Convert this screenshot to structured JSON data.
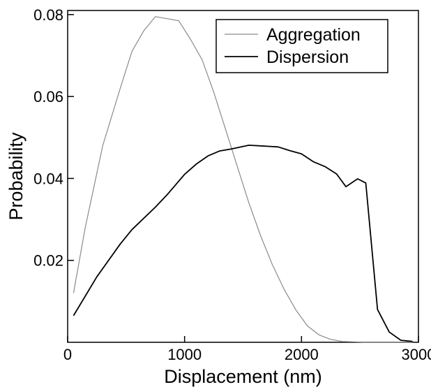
{
  "chart_data": {
    "type": "line",
    "title": "",
    "xlabel": "Displacement (nm)",
    "ylabel": "Probability",
    "xlim": [
      0,
      3000
    ],
    "ylim": [
      0,
      0.081
    ],
    "xticks": [
      0,
      1000,
      2000,
      3000
    ],
    "xtick_labels": [
      "0",
      "1000",
      "2000",
      "3000"
    ],
    "yticks": [
      0.02,
      0.04,
      0.06,
      0.08
    ],
    "ytick_labels": [
      "0.02",
      "0.04",
      "0.06",
      "0.08"
    ],
    "grid": false,
    "legend_position": "top-right",
    "series": [
      {
        "name": "Aggregation",
        "color": "#8a8a8a",
        "x": [
          50,
          150,
          300,
          450,
          550,
          650,
          750,
          850,
          950,
          1050,
          1150,
          1250,
          1350,
          1450,
          1550,
          1650,
          1750,
          1850,
          1950,
          2050,
          2150,
          2250,
          2350,
          2450,
          2550,
          2650,
          2750,
          2850,
          2950
        ],
        "y": [
          0.012,
          0.028,
          0.048,
          0.062,
          0.071,
          0.076,
          0.0795,
          0.079,
          0.0785,
          0.074,
          0.069,
          0.061,
          0.052,
          0.043,
          0.034,
          0.026,
          0.019,
          0.013,
          0.008,
          0.004,
          0.0018,
          0.0007,
          0.0002,
          0.0001,
          0.0,
          0.0,
          0.0,
          0.0,
          0.0
        ]
      },
      {
        "name": "Dispersion",
        "color": "#000000",
        "x": [
          50,
          250,
          450,
          550,
          750,
          850,
          1000,
          1100,
          1200,
          1300,
          1400,
          1550,
          1800,
          1900,
          2000,
          2100,
          2200,
          2300,
          2380,
          2480,
          2550,
          2650,
          2750,
          2850,
          2950
        ],
        "y": [
          0.0065,
          0.016,
          0.024,
          0.0275,
          0.033,
          0.036,
          0.041,
          0.0435,
          0.0455,
          0.0467,
          0.0472,
          0.0481,
          0.0477,
          0.0468,
          0.046,
          0.0441,
          0.0429,
          0.0411,
          0.038,
          0.0399,
          0.0389,
          0.008,
          0.0025,
          0.0005,
          0.0002
        ]
      }
    ]
  }
}
